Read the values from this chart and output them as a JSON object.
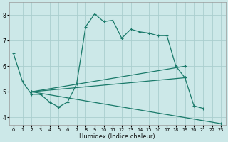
{
  "xlabel": "Humidex (Indice chaleur)",
  "bg_color": "#cce8e8",
  "grid_color": "#aacece",
  "line_color": "#1a7a6a",
  "xlim": [
    -0.5,
    23.5
  ],
  "ylim": [
    3.7,
    8.5
  ],
  "xticks": [
    0,
    1,
    2,
    3,
    4,
    5,
    6,
    7,
    8,
    9,
    10,
    11,
    12,
    13,
    14,
    15,
    16,
    17,
    18,
    19,
    20,
    21,
    22,
    23
  ],
  "yticks": [
    4,
    5,
    6,
    7,
    8
  ],
  "series": [
    {
      "x": [
        0,
        1,
        2,
        3,
        4,
        5,
        6,
        7,
        8,
        9,
        10,
        11,
        12,
        13,
        14,
        15,
        16,
        17,
        18,
        19,
        20,
        21
      ],
      "y": [
        6.5,
        5.4,
        4.9,
        4.9,
        4.6,
        4.4,
        4.6,
        5.3,
        7.55,
        8.05,
        7.75,
        7.8,
        7.1,
        7.45,
        7.35,
        7.3,
        7.2,
        7.2,
        6.0,
        5.55,
        4.45,
        4.35
      ]
    },
    {
      "x": [
        2,
        19
      ],
      "y": [
        5.0,
        6.0
      ]
    },
    {
      "x": [
        2,
        19
      ],
      "y": [
        5.0,
        5.55
      ]
    },
    {
      "x": [
        2,
        23
      ],
      "y": [
        5.0,
        3.75
      ]
    }
  ]
}
